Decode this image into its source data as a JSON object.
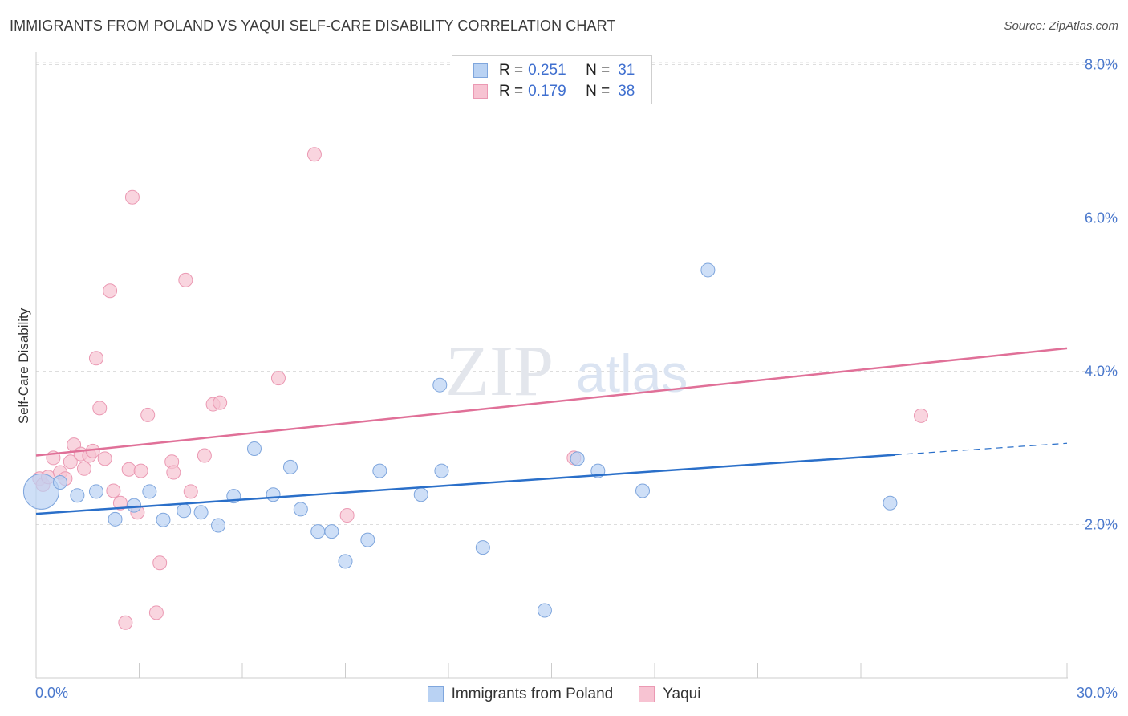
{
  "header": {
    "title": "IMMIGRANTS FROM POLAND VS YAQUI SELF-CARE DISABILITY CORRELATION CHART",
    "source": "Source: ZipAtlas.com"
  },
  "legend_top": {
    "series1": {
      "r_label": "R =",
      "r_value": "0.251",
      "n_label": "N =",
      "n_value": "31"
    },
    "series2": {
      "r_label": "R =",
      "r_value": "0.179",
      "n_label": "N =",
      "n_value": "38"
    }
  },
  "legend_bottom": {
    "series1": "Immigrants from Poland",
    "series2": "Yaqui"
  },
  "watermark": {
    "zip": "ZIP",
    "atlas": "atlas"
  },
  "colors": {
    "blue_fill": "#b9d2f3",
    "blue_stroke": "#7fa6dd",
    "blue_line": "#2a6fc9",
    "pink_fill": "#f7c3d2",
    "pink_stroke": "#eb99b3",
    "pink_line": "#e07098",
    "axis_text": "#4a78cc",
    "grid": "#dddddd"
  },
  "chart_data": {
    "type": "scatter",
    "title": "IMMIGRANTS FROM POLAND VS YAQUI SELF-CARE DISABILITY CORRELATION CHART",
    "xlabel": "",
    "ylabel": "Self-Care Disability",
    "xlim": [
      0,
      30
    ],
    "ylim": [
      0,
      8.3
    ],
    "x_tick_labels": [
      {
        "value": 0,
        "label": "0.0%"
      },
      {
        "value": 30,
        "label": "30.0%"
      }
    ],
    "y_tick_labels": [
      {
        "value": 2,
        "label": "2.0%"
      },
      {
        "value": 4,
        "label": "4.0%"
      },
      {
        "value": 6,
        "label": "6.0%"
      },
      {
        "value": 8,
        "label": "8.0%"
      }
    ],
    "legend_position": "top-center",
    "series": [
      {
        "name": "Immigrants from Poland",
        "R": 0.251,
        "N": 31,
        "trend": {
          "x": [
            0,
            25.0
          ],
          "y": [
            2.14,
            2.91
          ],
          "dashed_to": [
            30,
            3.06
          ]
        },
        "points": [
          {
            "x": 0.15,
            "y": 2.43,
            "big": true
          },
          {
            "x": 0.7,
            "y": 2.55
          },
          {
            "x": 1.2,
            "y": 2.38
          },
          {
            "x": 1.75,
            "y": 2.43
          },
          {
            "x": 2.3,
            "y": 2.07
          },
          {
            "x": 2.85,
            "y": 2.25
          },
          {
            "x": 3.3,
            "y": 2.43
          },
          {
            "x": 3.7,
            "y": 2.06
          },
          {
            "x": 4.3,
            "y": 2.18
          },
          {
            "x": 4.8,
            "y": 2.16
          },
          {
            "x": 5.3,
            "y": 1.99
          },
          {
            "x": 5.75,
            "y": 2.37
          },
          {
            "x": 6.35,
            "y": 2.99
          },
          {
            "x": 6.9,
            "y": 2.39
          },
          {
            "x": 7.4,
            "y": 2.75
          },
          {
            "x": 7.7,
            "y": 2.2
          },
          {
            "x": 8.2,
            "y": 1.91
          },
          {
            "x": 8.6,
            "y": 1.91
          },
          {
            "x": 9.0,
            "y": 1.52
          },
          {
            "x": 9.65,
            "y": 1.8
          },
          {
            "x": 10.0,
            "y": 2.7
          },
          {
            "x": 11.2,
            "y": 2.39
          },
          {
            "x": 11.75,
            "y": 3.82
          },
          {
            "x": 11.8,
            "y": 2.7
          },
          {
            "x": 13.0,
            "y": 1.7
          },
          {
            "x": 14.8,
            "y": 0.88
          },
          {
            "x": 15.75,
            "y": 2.86
          },
          {
            "x": 16.35,
            "y": 2.7
          },
          {
            "x": 17.65,
            "y": 2.44
          },
          {
            "x": 19.55,
            "y": 5.32
          },
          {
            "x": 24.85,
            "y": 2.28
          }
        ]
      },
      {
        "name": "Yaqui",
        "R": 0.179,
        "N": 38,
        "trend": {
          "x": [
            0,
            30
          ],
          "y": [
            2.9,
            4.3
          ]
        },
        "points": [
          {
            "x": 0.1,
            "y": 2.6
          },
          {
            "x": 0.2,
            "y": 2.52
          },
          {
            "x": 0.35,
            "y": 2.62
          },
          {
            "x": 0.5,
            "y": 2.87
          },
          {
            "x": 0.7,
            "y": 2.68
          },
          {
            "x": 0.85,
            "y": 2.6
          },
          {
            "x": 1.0,
            "y": 2.82
          },
          {
            "x": 1.1,
            "y": 3.04
          },
          {
            "x": 1.3,
            "y": 2.92
          },
          {
            "x": 1.4,
            "y": 2.73
          },
          {
            "x": 1.55,
            "y": 2.9
          },
          {
            "x": 1.65,
            "y": 2.96
          },
          {
            "x": 1.75,
            "y": 4.17
          },
          {
            "x": 1.85,
            "y": 3.52
          },
          {
            "x": 2.0,
            "y": 2.86
          },
          {
            "x": 2.15,
            "y": 5.05
          },
          {
            "x": 2.25,
            "y": 2.44
          },
          {
            "x": 2.45,
            "y": 2.28
          },
          {
            "x": 2.6,
            "y": 0.72
          },
          {
            "x": 2.7,
            "y": 2.72
          },
          {
            "x": 2.8,
            "y": 6.27
          },
          {
            "x": 2.95,
            "y": 2.16
          },
          {
            "x": 3.05,
            "y": 2.7
          },
          {
            "x": 3.25,
            "y": 3.43
          },
          {
            "x": 3.5,
            "y": 0.85
          },
          {
            "x": 3.6,
            "y": 1.5
          },
          {
            "x": 3.95,
            "y": 2.82
          },
          {
            "x": 4.0,
            "y": 2.68
          },
          {
            "x": 4.35,
            "y": 5.19
          },
          {
            "x": 4.5,
            "y": 2.43
          },
          {
            "x": 4.9,
            "y": 2.9
          },
          {
            "x": 5.15,
            "y": 3.57
          },
          {
            "x": 5.35,
            "y": 3.59
          },
          {
            "x": 7.05,
            "y": 3.91
          },
          {
            "x": 8.1,
            "y": 6.83
          },
          {
            "x": 15.65,
            "y": 2.87
          },
          {
            "x": 25.75,
            "y": 3.42
          },
          {
            "x": 9.05,
            "y": 2.12
          }
        ]
      }
    ]
  }
}
